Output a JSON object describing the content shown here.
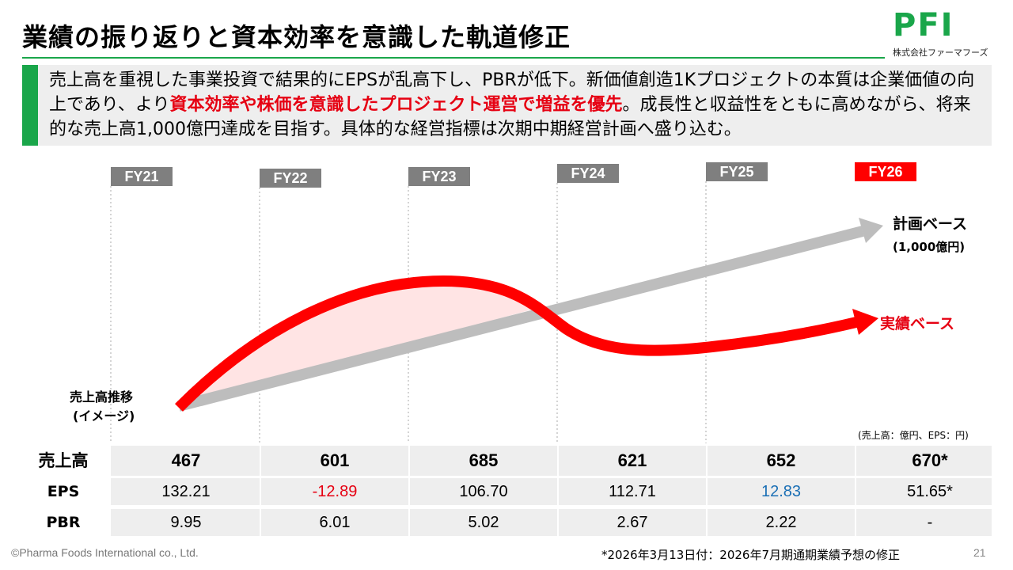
{
  "slide": {
    "title": "業績の振り返りと資本効率を意識した軌道修正",
    "logo_mark": "PFI",
    "logo_sub": "株式会社ファーマフーズ",
    "summary_pre": "売上高を重視した事業投資で結果的にEPSが乱高下し、PBRが低下。新価値創造1Kプロジェクトの本質は企業価値の向上であり、より",
    "summary_highlight": "資本効率や株価を意識したプロジェクト運営で増益を優先",
    "summary_post": "。成長性と収益性をともに高めながら、将来的な売上高1,000億円達成を目指す。具体的な経営指標は次期中期経営計画へ盛り込む。",
    "footer_left": "©Pharma Foods International co., Ltd.",
    "footer_note": "*2026年3月13日付：2026年7月期通期業績予想の修正",
    "page_number": "21"
  },
  "chart_data": {
    "type": "line",
    "categories": [
      "FY21",
      "FY22",
      "FY23",
      "FY24",
      "FY25",
      "FY26"
    ],
    "highlight_category": "FY26",
    "y_label": "売上高推移\n(イメージ)",
    "y_label_line1": "売上高推移",
    "y_label_line2": "(イメージ)",
    "plan_label": "計画ベース",
    "plan_sub_label": "(1,000億円)",
    "actual_label": "実績ベース",
    "unit_note": "(売上高：億円、EPS：円)",
    "colors": {
      "plan": "#bdbdbd",
      "actual": "#ff0000",
      "tab": "#7f7f7f",
      "tab_highlight": "#ff0000",
      "gap_fill": "#ffe4e4"
    }
  },
  "table": {
    "rows": [
      {
        "label": "売上高",
        "values": [
          "467",
          "601",
          "685",
          "621",
          "652",
          "670*"
        ]
      },
      {
        "label": "EPS",
        "values": [
          "132.21",
          "-12.89",
          "106.70",
          "112.71",
          "12.83",
          "51.65*"
        ]
      },
      {
        "label": "PBR",
        "values": [
          "9.95",
          "6.01",
          "5.02",
          "2.67",
          "2.22",
          "-"
        ]
      }
    ],
    "colors": {
      "negative": "#e60012",
      "low": "#1a6fb5",
      "row_bg": "#eeeeee"
    }
  }
}
